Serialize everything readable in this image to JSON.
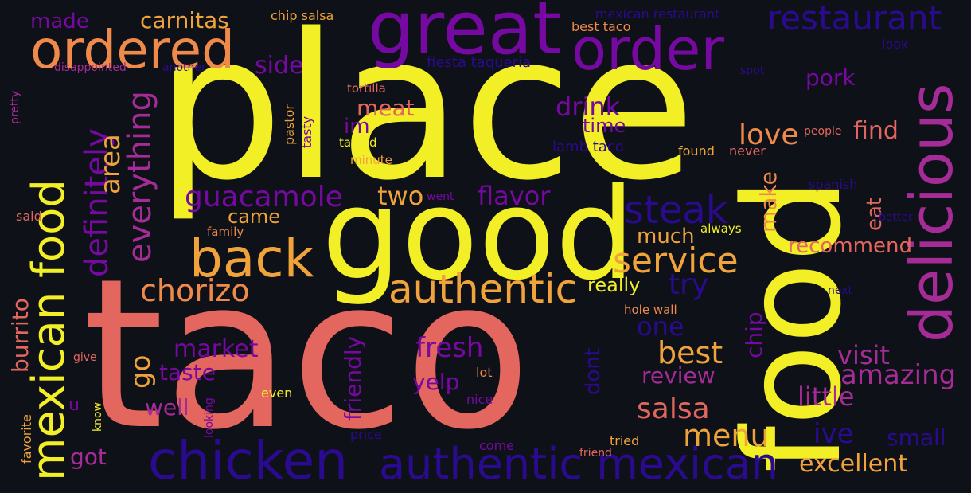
{
  "palette": {
    "background": "#0e1117",
    "yellow": "#f2ef27",
    "salmon": "#e3665f",
    "orange": "#f0a33b",
    "magenta": "#a52c96",
    "purple": "#7609a1",
    "indigo": "#2a0b8f"
  },
  "words": [
    "place",
    "taco",
    "food",
    "good",
    "great",
    "order",
    "ordered",
    "restaurant",
    "delicious",
    "mexican food",
    "chicken",
    "authentic mexican",
    "back",
    "authentic",
    "service",
    "steak",
    "chorizo",
    "guacamole",
    "definitely",
    "everything",
    "area",
    "burrito",
    "carnitas",
    "made",
    "chip salsa",
    "mexican restaurant",
    "best taco",
    "look",
    "fiesta taqueria",
    "another",
    "disappointed",
    "pretty",
    "side",
    "meat",
    "tortilla",
    "pastor",
    "tasty",
    "tasted",
    "minute",
    "im",
    "drink",
    "time",
    "lamb taco",
    "pork",
    "find",
    "love",
    "found",
    "never",
    "people",
    "spot",
    "spanish",
    "eat",
    "better",
    "two",
    "flavor",
    "make",
    "recommend",
    "went",
    "came",
    "said",
    "family",
    "always",
    "much",
    "really",
    "try",
    "hole wall",
    "next",
    "one",
    "market",
    "fresh",
    "best",
    "chip",
    "visit",
    "amazing",
    "go",
    "taste",
    "review",
    "dont",
    "give",
    "lot",
    "friendly",
    "little",
    "yelp",
    "salsa",
    "well",
    "even",
    "nice",
    "looking",
    "favorite",
    "know",
    "menu",
    "price",
    "ive",
    "small",
    "come",
    "tried",
    "friend",
    "excellent",
    "got",
    "u"
  ]
}
